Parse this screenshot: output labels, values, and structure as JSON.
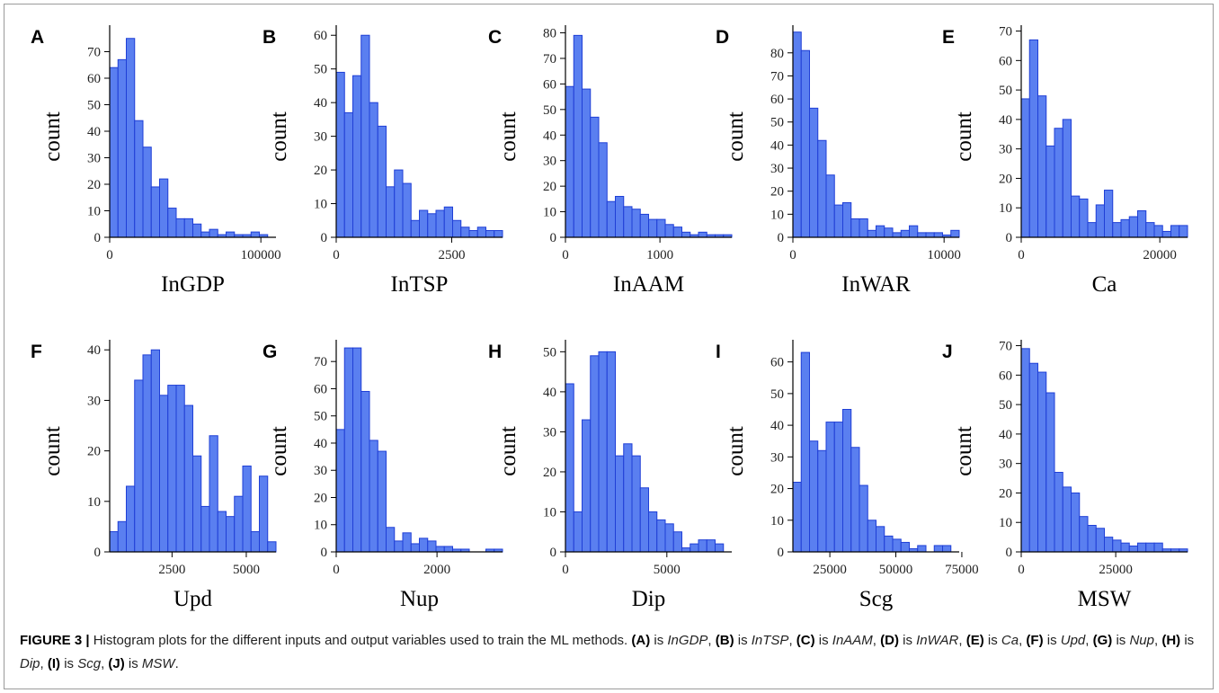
{
  "caption": {
    "label": "FIGURE 3 |",
    "text": " Histogram plots for the different inputs and output variables used to train the ML methods. ",
    "parts": [
      {
        "k": "(A)",
        "v": "InGDP"
      },
      {
        "k": "(B)",
        "v": "InTSP"
      },
      {
        "k": "(C)",
        "v": "InAAM"
      },
      {
        "k": "(D)",
        "v": "InWAR"
      },
      {
        "k": "(E)",
        "v": "Ca"
      },
      {
        "k": "(F)",
        "v": "Upd"
      },
      {
        "k": "(G)",
        "v": "Nup"
      },
      {
        "k": "(H)",
        "v": "Dip"
      },
      {
        "k": "(I)",
        "v": "Scg"
      },
      {
        "k": "(J)",
        "v": "MSW"
      }
    ]
  },
  "chart_data": [
    {
      "type": "bar",
      "panel": "A",
      "xlabel": "InGDP",
      "ylabel": "count",
      "xlim": [
        0,
        110000
      ],
      "ylim": [
        0,
        80
      ],
      "xticks": [
        0,
        100000
      ],
      "yticks": [
        0,
        10,
        20,
        30,
        40,
        50,
        60,
        70
      ],
      "bin_start": 0,
      "bin_width": 5500,
      "values": [
        64,
        67,
        75,
        44,
        34,
        19,
        22,
        11,
        7,
        7,
        5,
        2,
        3,
        1,
        2,
        1,
        1,
        2,
        1
      ]
    },
    {
      "type": "bar",
      "panel": "B",
      "xlabel": "InTSP",
      "ylabel": "count",
      "xlim": [
        0,
        3600
      ],
      "ylim": [
        0,
        63
      ],
      "xticks": [
        0,
        2500
      ],
      "yticks": [
        0,
        10,
        20,
        30,
        40,
        50,
        60
      ],
      "bin_start": 0,
      "bin_width": 180,
      "values": [
        49,
        37,
        48,
        60,
        40,
        33,
        15,
        20,
        16,
        5,
        8,
        7,
        8,
        9,
        5,
        3,
        2,
        3,
        2,
        2
      ]
    },
    {
      "type": "bar",
      "panel": "C",
      "xlabel": "InAAM",
      "ylabel": "count",
      "xlim": [
        0,
        1760
      ],
      "ylim": [
        0,
        83
      ],
      "xticks": [
        0,
        1000
      ],
      "yticks": [
        0,
        10,
        20,
        30,
        40,
        50,
        60,
        70,
        80
      ],
      "bin_start": 0,
      "bin_width": 88,
      "values": [
        59,
        79,
        58,
        47,
        37,
        14,
        16,
        12,
        11,
        9,
        7,
        7,
        5,
        4,
        2,
        1,
        2,
        1,
        1,
        1
      ]
    },
    {
      "type": "bar",
      "panel": "D",
      "xlabel": "InWAR",
      "ylabel": "count",
      "xlim": [
        0,
        11000
      ],
      "ylim": [
        0,
        92
      ],
      "xticks": [
        0,
        10000
      ],
      "yticks": [
        0,
        10,
        20,
        30,
        40,
        50,
        60,
        70,
        80
      ],
      "bin_start": 0,
      "bin_width": 550,
      "values": [
        89,
        81,
        56,
        42,
        27,
        14,
        15,
        8,
        8,
        3,
        5,
        4,
        2,
        3,
        5,
        2,
        2,
        2,
        1,
        3
      ]
    },
    {
      "type": "bar",
      "panel": "E",
      "xlabel": "Ca",
      "ylabel": "count",
      "xlim": [
        0,
        24000
      ],
      "ylim": [
        0,
        72
      ],
      "xticks": [
        0,
        20000
      ],
      "yticks": [
        0,
        10,
        20,
        30,
        40,
        50,
        60,
        70
      ],
      "bin_start": 0,
      "bin_width": 1200,
      "values": [
        47,
        67,
        48,
        31,
        37,
        40,
        14,
        13,
        5,
        11,
        16,
        5,
        6,
        7,
        9,
        5,
        4,
        2,
        4,
        4
      ]
    },
    {
      "type": "bar",
      "panel": "F",
      "xlabel": "Upd",
      "ylabel": "count",
      "xlim": [
        400,
        6000
      ],
      "ylim": [
        0,
        42
      ],
      "xticks": [
        2500,
        5000
      ],
      "yticks": [
        0,
        10,
        20,
        30,
        40
      ],
      "bin_start": 400,
      "bin_width": 280,
      "values": [
        4,
        6,
        13,
        34,
        39,
        40,
        31,
        33,
        33,
        29,
        19,
        9,
        23,
        8,
        7,
        11,
        17,
        4,
        15,
        2
      ]
    },
    {
      "type": "bar",
      "panel": "G",
      "xlabel": "Nup",
      "ylabel": "count",
      "xlim": [
        0,
        3300
      ],
      "ylim": [
        0,
        78
      ],
      "xticks": [
        0,
        2000
      ],
      "yticks": [
        0,
        10,
        20,
        30,
        40,
        50,
        60,
        70
      ],
      "bin_start": 0,
      "bin_width": 165,
      "values": [
        45,
        75,
        75,
        59,
        41,
        37,
        9,
        4,
        7,
        3,
        5,
        4,
        2,
        2,
        1,
        1,
        0,
        0,
        1,
        1
      ]
    },
    {
      "type": "bar",
      "panel": "H",
      "xlabel": "Dip",
      "ylabel": "count",
      "xlim": [
        0,
        8200
      ],
      "ylim": [
        0,
        53
      ],
      "xticks": [
        0,
        5000
      ],
      "yticks": [
        0,
        10,
        20,
        30,
        40,
        50
      ],
      "bin_start": 0,
      "bin_width": 410,
      "values": [
        42,
        10,
        33,
        49,
        50,
        50,
        24,
        27,
        24,
        16,
        10,
        8,
        7,
        5,
        1,
        2,
        3,
        3,
        2
      ]
    },
    {
      "type": "bar",
      "panel": "I",
      "xlabel": "Scg",
      "ylabel": "count",
      "xlim": [
        11000,
        74000
      ],
      "ylim": [
        0,
        67
      ],
      "xticks": [
        25000,
        50000,
        75000
      ],
      "yticks": [
        0,
        10,
        20,
        30,
        40,
        50,
        60
      ],
      "bin_start": 11000,
      "bin_width": 3150,
      "values": [
        22,
        63,
        35,
        32,
        41,
        41,
        45,
        33,
        21,
        10,
        8,
        5,
        4,
        3,
        1,
        2,
        0,
        2,
        2
      ]
    },
    {
      "type": "bar",
      "panel": "J",
      "xlabel": "MSW",
      "ylabel": "count",
      "xlim": [
        0,
        44000
      ],
      "ylim": [
        0,
        72
      ],
      "xticks": [
        0,
        25000
      ],
      "yticks": [
        0,
        10,
        20,
        30,
        40,
        50,
        60,
        70
      ],
      "bin_start": 0,
      "bin_width": 2200,
      "values": [
        69,
        64,
        61,
        54,
        27,
        22,
        20,
        12,
        9,
        8,
        5,
        4,
        3,
        2,
        3,
        3,
        3,
        1,
        1,
        1
      ]
    }
  ]
}
